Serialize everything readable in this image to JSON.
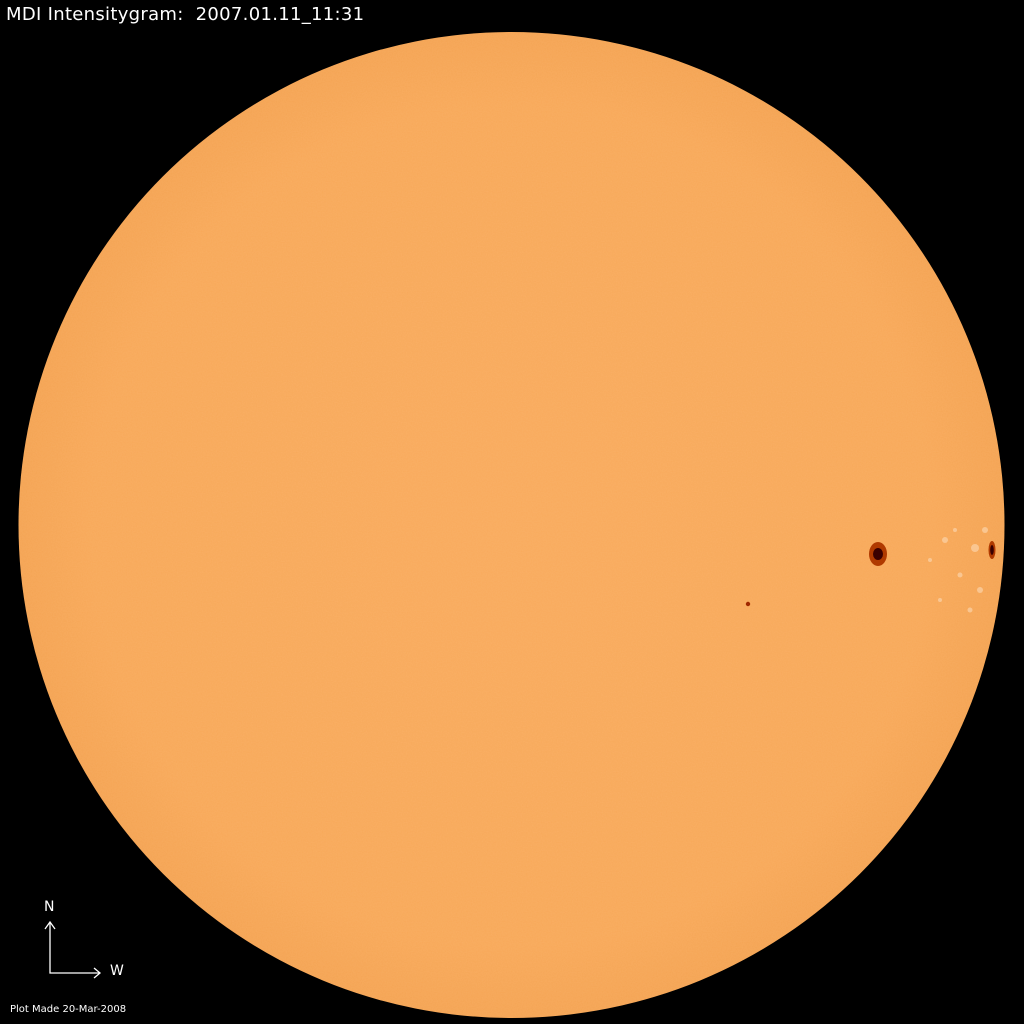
{
  "title": "MDI Intensitygram:  2007.01.11_11:31",
  "compass": {
    "north_label": "N",
    "west_label": "W"
  },
  "footer": "Plot Made 20-Mar-2008",
  "colors": {
    "background": "#000000",
    "disk": "#F9A85A",
    "sunspot_umbra": "#3A0000",
    "sunspot_penumbra": "#B03A00",
    "text": "#FFFFFF"
  }
}
